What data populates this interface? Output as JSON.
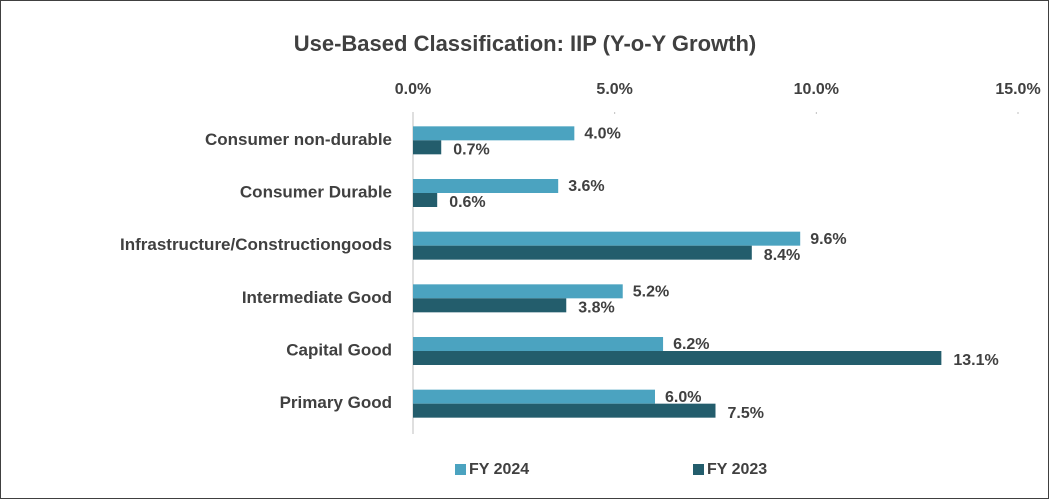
{
  "chart_data": {
    "type": "bar",
    "orientation": "horizontal",
    "title": "Use-Based Classification: IIP (Y-o-Y Growth)",
    "categories": [
      "Consumer non-durable",
      "Consumer Durable",
      "Infrastructure/Constructiongoods",
      "Intermediate Good",
      "Capital Good",
      "Primary Good"
    ],
    "series": [
      {
        "name": "FY 2024",
        "color": "#4ba3c0",
        "values": [
          4.0,
          3.6,
          9.6,
          5.2,
          6.2,
          6.0
        ],
        "value_labels": [
          "4.0%",
          "3.6%",
          "9.6%",
          "5.2%",
          "6.2%",
          "6.0%"
        ]
      },
      {
        "name": "FY 2023",
        "color": "#235d6c",
        "values": [
          0.7,
          0.6,
          8.4,
          3.8,
          13.1,
          7.5
        ],
        "value_labels": [
          "0.7%",
          "0.6%",
          "8.4%",
          "3.8%",
          "13.1%",
          "7.5%"
        ]
      }
    ],
    "xlim": [
      0,
      15
    ],
    "xticks": [
      {
        "value": 0,
        "label": "0.0%"
      },
      {
        "value": 5,
        "label": "5.0%"
      },
      {
        "value": 10,
        "label": "10.0%"
      },
      {
        "value": 15,
        "label": "15.0%"
      }
    ],
    "grid": false,
    "legend": "bottom"
  }
}
